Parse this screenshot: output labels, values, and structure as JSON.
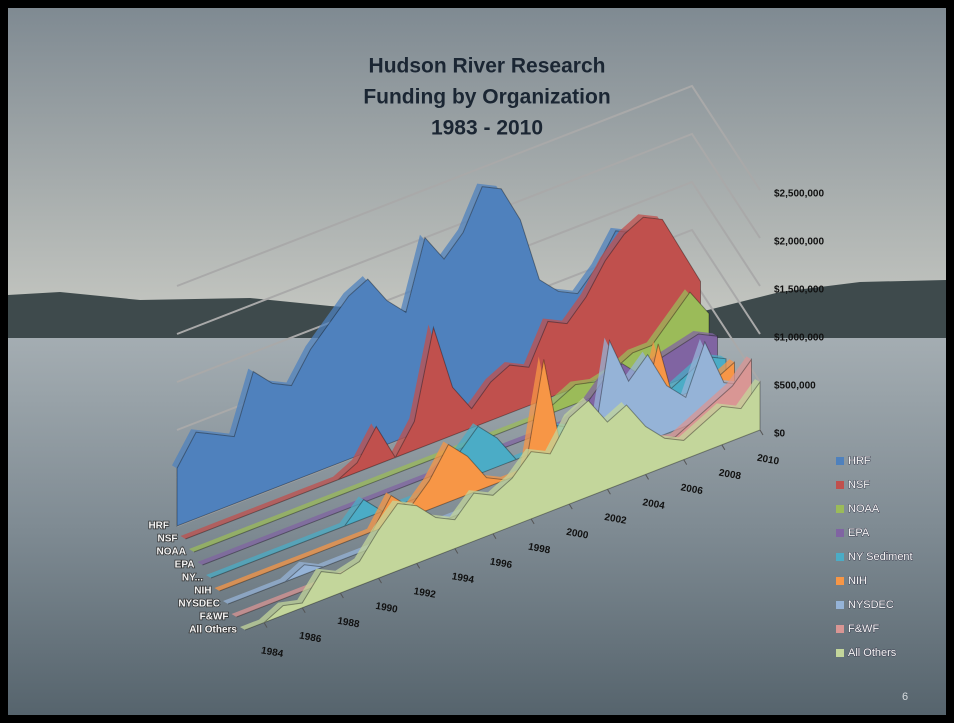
{
  "chart_data": {
    "type": "area",
    "title": [
      "Hudson River Research",
      "Funding by Organization",
      "1983 - 2010"
    ],
    "x": [
      1983,
      1984,
      1985,
      1986,
      1987,
      1988,
      1989,
      1990,
      1991,
      1992,
      1993,
      1994,
      1995,
      1996,
      1997,
      1998,
      1999,
      2000,
      2001,
      2002,
      2003,
      2004,
      2005,
      2006,
      2007,
      2008,
      2009,
      2010
    ],
    "xlim": [
      1983,
      2010
    ],
    "xticks": [
      1984,
      1986,
      1988,
      1990,
      1992,
      1994,
      1996,
      1998,
      2000,
      2002,
      2004,
      2006,
      2008,
      2010
    ],
    "ylim": [
      0,
      2500000
    ],
    "yticks": [
      {
        "value": 0,
        "label": "$0"
      },
      {
        "value": 500000,
        "label": "$500,000"
      },
      {
        "value": 1000000,
        "label": "$1,000,000"
      },
      {
        "value": 1500000,
        "label": "$1,500,000"
      },
      {
        "value": 2000000,
        "label": "$2,000,000"
      },
      {
        "value": 2500000,
        "label": "$2,500,000"
      }
    ],
    "depth_labels": [
      "HRF",
      "NSF",
      "NOAA",
      "EPA",
      "NY...",
      "NIH",
      "NYSDEC",
      "F&WF",
      "All Others"
    ],
    "grid": true,
    "series": [
      {
        "name": "HRF",
        "color": "#4f81bd",
        "values": [
          600000,
          900000,
          800000,
          700000,
          1300000,
          1100000,
          1000000,
          1300000,
          1500000,
          1700000,
          1800000,
          1500000,
          1300000,
          2000000,
          1700000,
          1900000,
          2300000,
          2200000,
          1800000,
          1100000,
          900000,
          800000,
          1000000,
          1300000,
          1200000,
          700000,
          500000,
          300000
        ]
      },
      {
        "name": "NSF",
        "color": "#c0504d",
        "values": [
          0,
          0,
          0,
          0,
          0,
          0,
          0,
          0,
          0,
          100000,
          400000,
          0,
          300000,
          1200000,
          500000,
          200000,
          400000,
          500000,
          400000,
          800000,
          700000,
          900000,
          1200000,
          1400000,
          1500000,
          1400000,
          1000000,
          600000
        ]
      },
      {
        "name": "NOAA",
        "color": "#9bbb59",
        "values": [
          0,
          0,
          0,
          0,
          0,
          0,
          0,
          0,
          0,
          0,
          0,
          0,
          0,
          0,
          0,
          0,
          0,
          0,
          0,
          100000,
          200000,
          150000,
          200000,
          300000,
          300000,
          500000,
          700000,
          400000
        ]
      },
      {
        "name": "EPA",
        "color": "#8064a2",
        "values": [
          0,
          0,
          0,
          0,
          0,
          0,
          0,
          0,
          0,
          0,
          0,
          0,
          0,
          100000,
          0,
          0,
          0,
          0,
          0,
          0,
          100000,
          300000,
          400000,
          200000,
          300000,
          350000,
          400000,
          300000
        ]
      },
      {
        "name": "NY Sediment",
        "color": "#4bacc6",
        "values": [
          0,
          0,
          0,
          0,
          0,
          0,
          0,
          0,
          200000,
          0,
          0,
          0,
          0,
          300000,
          500000,
          300000,
          0,
          0,
          200000,
          100000,
          0,
          0,
          0,
          100000,
          100000,
          200000,
          300000,
          200000
        ]
      },
      {
        "name": "NIH",
        "color": "#f79646",
        "values": [
          0,
          0,
          0,
          0,
          0,
          0,
          0,
          0,
          0,
          300000,
          100000,
          300000,
          600000,
          400000,
          100000,
          0,
          0,
          1100000,
          0,
          0,
          0,
          0,
          0,
          800000,
          0,
          100000,
          200000,
          300000
        ]
      },
      {
        "name": "NYSDEC",
        "color": "#95b3d7",
        "values": [
          0,
          0,
          0,
          0,
          100000,
          0,
          0,
          0,
          0,
          0,
          0,
          0,
          0,
          0,
          0,
          0,
          0,
          0,
          0,
          0,
          1200000,
          700000,
          900000,
          500000,
          300000,
          800000,
          300000,
          200000
        ]
      },
      {
        "name": "F&WF",
        "color": "#d99694",
        "values": [
          0,
          0,
          0,
          0,
          0,
          0,
          0,
          0,
          0,
          0,
          0,
          0,
          0,
          0,
          0,
          0,
          0,
          0,
          0,
          100000,
          100000,
          200000,
          150000,
          100000,
          200000,
          300000,
          400000,
          600000
        ]
      },
      {
        "name": "All Others",
        "color": "#c3d69b",
        "values": [
          0,
          0,
          100000,
          50000,
          300000,
          200000,
          250000,
          500000,
          700000,
          600000,
          400000,
          300000,
          500000,
          400000,
          500000,
          700000,
          600000,
          900000,
          1000000,
          700000,
          800000,
          500000,
          300000,
          200000,
          300000,
          400000,
          300000,
          500000
        ]
      }
    ]
  },
  "page_number": "6"
}
